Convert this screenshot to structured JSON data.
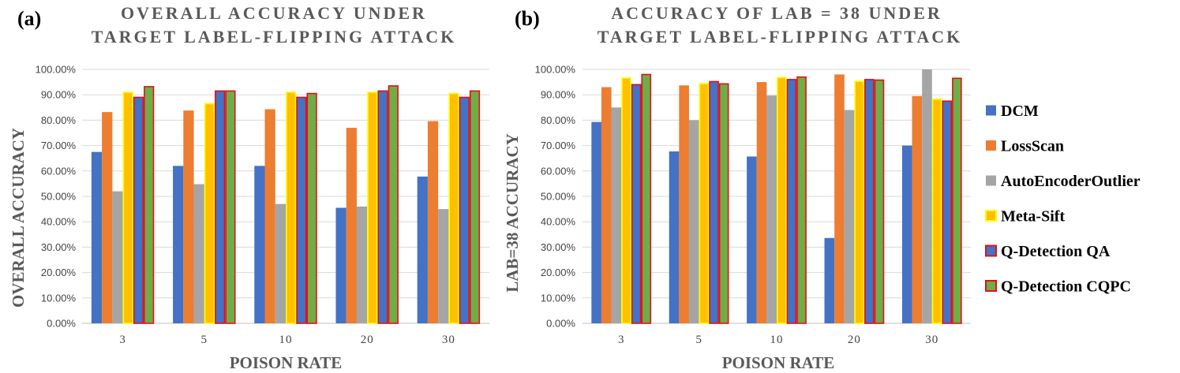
{
  "colors": {
    "DCM": "#4472C4",
    "LossScan": "#ED7D31",
    "AutoEncoderOutlier": "#A5A5A5",
    "Meta-Sift": "#FFC000",
    "Meta-Sift-border": "#FFFF00",
    "Q-Detection QA": "#4472C4",
    "Q-Detection CQPC": "#70AD47",
    "highlight-border": "#E0101A",
    "grid": "#D9D9D9"
  },
  "legend": {
    "items": [
      {
        "name": "DCM",
        "fill": "#4472C4",
        "border": "none"
      },
      {
        "name": "LossScan",
        "fill": "#ED7D31",
        "border": "none"
      },
      {
        "name": "AutoEncoderOutlier",
        "fill": "#A5A5A5",
        "border": "none"
      },
      {
        "name": "Meta-Sift",
        "fill": "#FFC000",
        "border": "#FFFF00"
      },
      {
        "name": "Q-Detection QA",
        "fill": "#4472C4",
        "border": "#E0101A"
      },
      {
        "name": "Q-Detection CQPC",
        "fill": "#70AD47",
        "border": "#E0101A"
      }
    ]
  },
  "chart_data": [
    {
      "panel": "(a)",
      "type": "bar",
      "title_lines": [
        "OVERALL ACCURACY UNDER",
        "TARGET LABEL-FLIPPING ATTACK"
      ],
      "xlabel": "POISON RATE",
      "ylabel": "OVERALL ACCURACY",
      "categories": [
        "3",
        "5",
        "10",
        "20",
        "30"
      ],
      "ylim": [
        0,
        100
      ],
      "yticks": [
        "0.00%",
        "10.00%",
        "20.00%",
        "30.00%",
        "40.00%",
        "50.00%",
        "60.00%",
        "70.00%",
        "80.00%",
        "90.00%",
        "100.00%"
      ],
      "grid": true,
      "series": [
        {
          "name": "DCM",
          "values": [
            67.5,
            62,
            62,
            45.5,
            57.8
          ]
        },
        {
          "name": "LossScan",
          "values": [
            83.2,
            83.8,
            84.3,
            77,
            79.6
          ]
        },
        {
          "name": "AutoEncoderOutlier",
          "values": [
            52,
            54.8,
            47,
            46,
            45
          ]
        },
        {
          "name": "Meta-Sift",
          "values": [
            91,
            86.5,
            91,
            91,
            90.5
          ]
        },
        {
          "name": "Q-Detection QA",
          "values": [
            89,
            91.5,
            89,
            91.5,
            89
          ]
        },
        {
          "name": "Q-Detection CQPC",
          "values": [
            93.2,
            91.5,
            90.5,
            93.5,
            91.5
          ]
        }
      ]
    },
    {
      "panel": "(b)",
      "type": "bar",
      "title_lines": [
        "ACCURACY OF LAB = 38 UNDER",
        "TARGET LABEL-FLIPPING ATTACK"
      ],
      "xlabel": "POISON RATE",
      "ylabel": "LAB=38  ACCURACY",
      "categories": [
        "3",
        "5",
        "10",
        "20",
        "30"
      ],
      "ylim": [
        0,
        100
      ],
      "yticks": [
        "0.00%",
        "10.00%",
        "20.00%",
        "30.00%",
        "40.00%",
        "50.00%",
        "60.00%",
        "70.00%",
        "80.00%",
        "90.00%",
        "100.00%"
      ],
      "grid": true,
      "series": [
        {
          "name": "DCM",
          "values": [
            79.3,
            67.7,
            65.7,
            33.6,
            70
          ]
        },
        {
          "name": "LossScan",
          "values": [
            93,
            93.7,
            95,
            98,
            89.5
          ]
        },
        {
          "name": "AutoEncoderOutlier",
          "values": [
            85,
            80,
            89.7,
            84,
            100
          ]
        },
        {
          "name": "Meta-Sift",
          "values": [
            96.6,
            94.4,
            96.8,
            95.3,
            88.3
          ]
        },
        {
          "name": "Q-Detection QA",
          "values": [
            94,
            95.2,
            96,
            96,
            87.5
          ]
        },
        {
          "name": "Q-Detection CQPC",
          "values": [
            98,
            94.3,
            97,
            95.8,
            96.5
          ]
        }
      ]
    }
  ]
}
